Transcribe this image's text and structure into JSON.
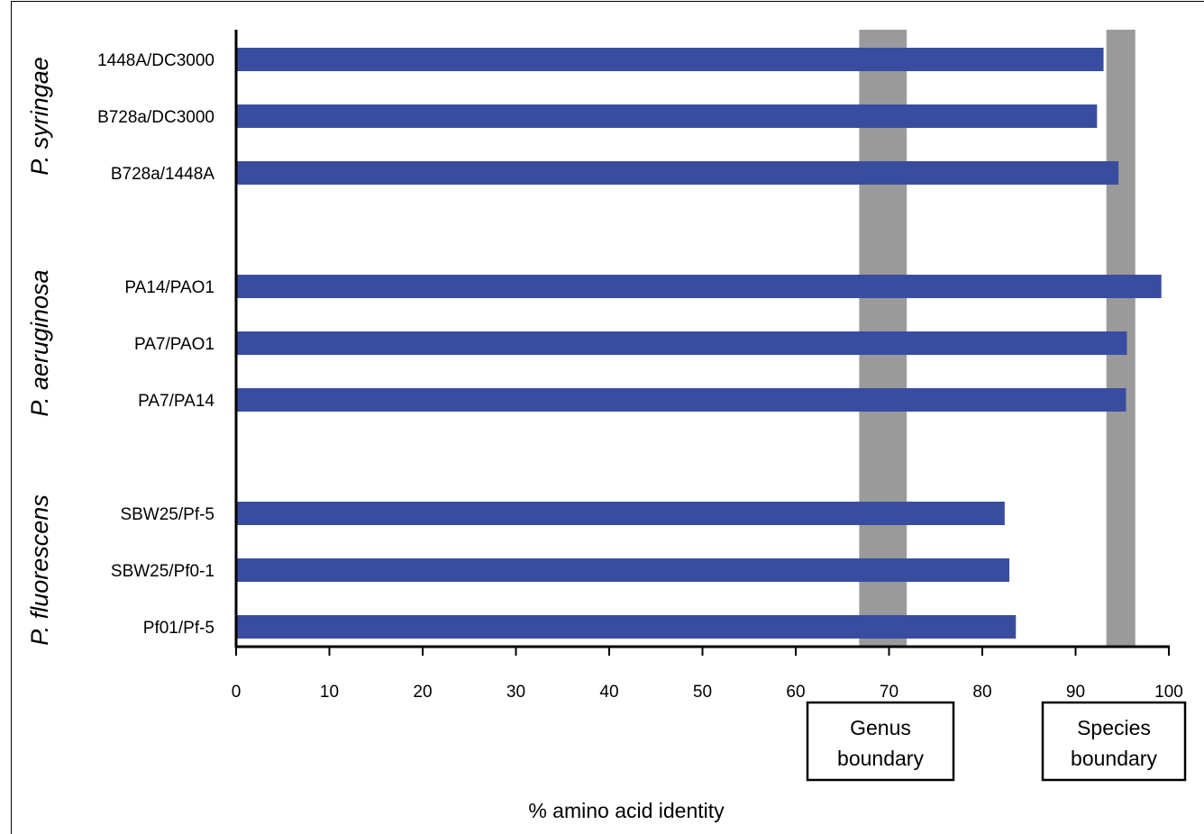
{
  "chart_data": {
    "type": "bar",
    "orientation": "horizontal",
    "xlabel": "% amino acid identity",
    "xlim": [
      0,
      100
    ],
    "xticks": [
      0,
      10,
      20,
      30,
      40,
      50,
      60,
      70,
      80,
      90,
      100
    ],
    "bar_color": "#394da0",
    "band_color": "#999a99",
    "groups": [
      {
        "name": "P. syringae",
        "categories": [
          "1448A/DC3000",
          "B728a/DC3000",
          "B728a/1448A"
        ],
        "values": [
          93.0,
          92.3,
          94.6
        ]
      },
      {
        "name": "P. aeruginosa",
        "categories": [
          "PA14/PAO1",
          "PA7/PAO1",
          "PA7/PA14"
        ],
        "values": [
          99.2,
          95.5,
          95.4
        ]
      },
      {
        "name": "P. fluorescens",
        "categories": [
          "SBW25/Pf-5",
          "SBW25/Pf0-1",
          "Pf01/Pf-5"
        ],
        "values": [
          82.4,
          82.9,
          83.6
        ]
      }
    ],
    "bands": [
      {
        "label_line1": "Genus",
        "label_line2": "boundary",
        "range": [
          66.8,
          71.9
        ]
      },
      {
        "label_line1": "Species",
        "label_line2": "boundary",
        "range": [
          93.3,
          96.4
        ]
      }
    ]
  }
}
